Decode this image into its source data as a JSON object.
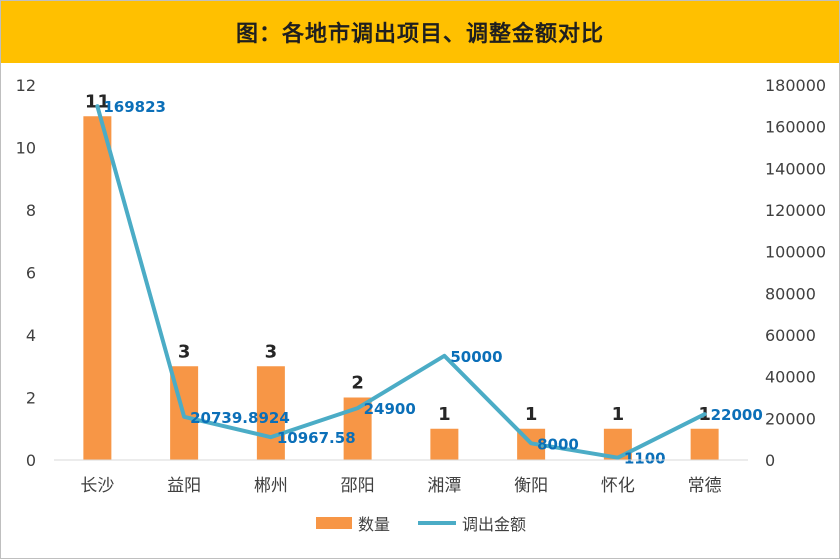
{
  "chart_data": {
    "type": "bar",
    "title": "图：各地市调出项目、调整金额对比",
    "categories": [
      "长沙",
      "益阳",
      "郴州",
      "邵阳",
      "湘潭",
      "衡阳",
      "怀化",
      "常德"
    ],
    "series": [
      {
        "name": "数量",
        "type": "bar",
        "axis": "left",
        "values": [
          11,
          3,
          3,
          2,
          1,
          1,
          1,
          1
        ],
        "labels": [
          "11",
          "3",
          "3",
          "2",
          "1",
          "1",
          "1",
          "1"
        ]
      },
      {
        "name": "调出金额",
        "type": "line",
        "axis": "right",
        "values": [
          169823,
          20739.8924,
          10967.58,
          24900,
          50000,
          8000,
          1100,
          22000
        ],
        "labels": [
          "169823",
          "20739.8924",
          "10967.58",
          "24900",
          "50000",
          "8000",
          "1100",
          "22000"
        ]
      }
    ],
    "y_left": {
      "range": [
        0,
        12
      ],
      "ticks": [
        "0",
        "2",
        "4",
        "6",
        "8",
        "10",
        "12"
      ]
    },
    "y_right": {
      "range": [
        0,
        180000
      ],
      "ticks": [
        "0",
        "20000",
        "40000",
        "60000",
        "80000",
        "100000",
        "120000",
        "140000",
        "160000",
        "180000"
      ]
    },
    "grid": false,
    "legend": "bottom",
    "colors": {
      "bar": "#f79646",
      "line": "#4bacc6",
      "line_label": "#0b6fb8",
      "title_bg": "#ffc000"
    }
  }
}
